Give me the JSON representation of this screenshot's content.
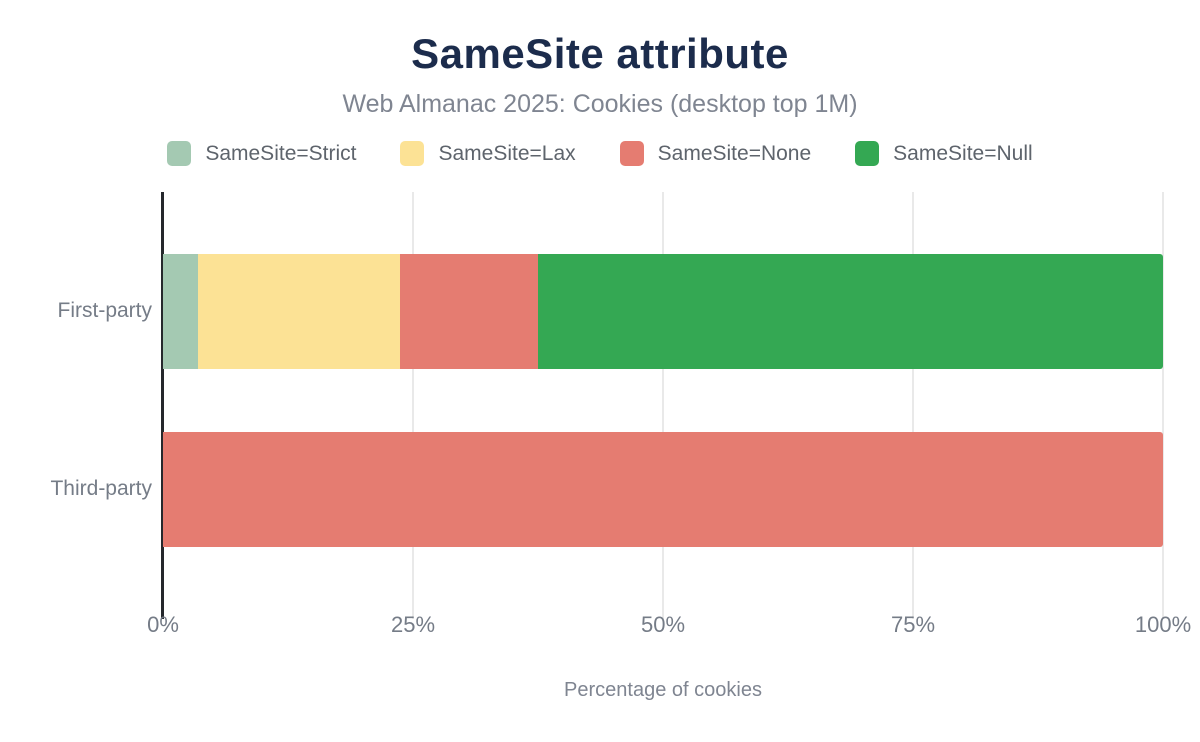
{
  "header": {
    "title": "SameSite attribute",
    "subtitle": "Web Almanac 2025: Cookies (desktop top 1M)"
  },
  "colors": {
    "title": "#1c2c4c",
    "subtitle": "#7f8591",
    "legend_text": "#5e646c",
    "axis_text": "#757c87",
    "axis_line": "#25282c",
    "gridline": "#e9e9e9",
    "background": "#ffffff"
  },
  "chart_data": {
    "type": "bar",
    "orientation": "horizontal",
    "stacked": true,
    "title": "SameSite attribute",
    "subtitle": "Web Almanac 2025: Cookies (desktop top 1M)",
    "categories": [
      "First-party",
      "Third-party"
    ],
    "series": [
      {
        "name": "SameSite=Strict",
        "color": "#a4c9b2",
        "values": [
          3.5,
          0
        ]
      },
      {
        "name": "SameSite=Lax",
        "color": "#fce295",
        "values": [
          20.2,
          0
        ]
      },
      {
        "name": "SameSite=None",
        "color": "#e57c71",
        "values": [
          13.8,
          100
        ]
      },
      {
        "name": "SameSite=Null",
        "color": "#34a853",
        "values": [
          62.5,
          0
        ]
      }
    ],
    "xlabel": "Percentage of cookies",
    "ylabel": "",
    "xlim": [
      0,
      100
    ],
    "xticks": [
      "0%",
      "25%",
      "50%",
      "75%",
      "100%"
    ],
    "xtick_values": [
      0,
      25,
      50,
      75,
      100
    ],
    "legend_position": "top",
    "grid": "vertical"
  }
}
